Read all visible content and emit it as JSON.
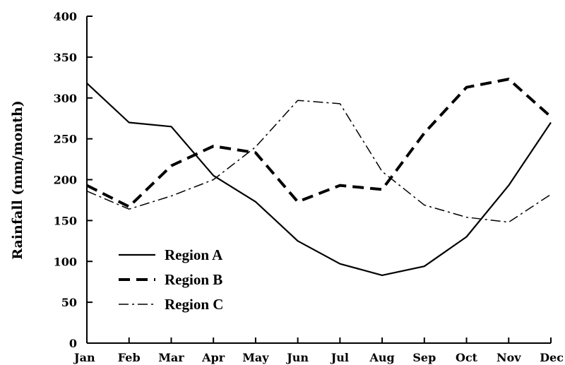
{
  "chart_data": {
    "type": "line",
    "title": "",
    "xlabel": "",
    "ylabel": "Rainfall (mm/month)",
    "categories": [
      "Jan",
      "Feb",
      "Mar",
      "Apr",
      "May",
      "Jun",
      "Jul",
      "Aug",
      "Sep",
      "Oct",
      "Nov",
      "Dec"
    ],
    "ylim": [
      0,
      400
    ],
    "yticks": [
      0,
      50,
      100,
      150,
      200,
      250,
      300,
      350,
      400
    ],
    "grid": false,
    "legend_position": "lower-left",
    "series": [
      {
        "name": "Region A",
        "style": "solid",
        "color": "#000000",
        "values": [
          318,
          270,
          265,
          205,
          173,
          125,
          97,
          83,
          94,
          130,
          193,
          270
        ]
      },
      {
        "name": "Region B",
        "style": "dashed",
        "color": "#000000",
        "values": [
          193,
          167,
          217,
          241,
          233,
          173,
          193,
          188,
          257,
          313,
          323,
          277
        ]
      },
      {
        "name": "Region C",
        "style": "dash-dot",
        "color": "#000000",
        "values": [
          186,
          164,
          180,
          200,
          240,
          297,
          293,
          210,
          169,
          154,
          148,
          182
        ]
      }
    ]
  }
}
